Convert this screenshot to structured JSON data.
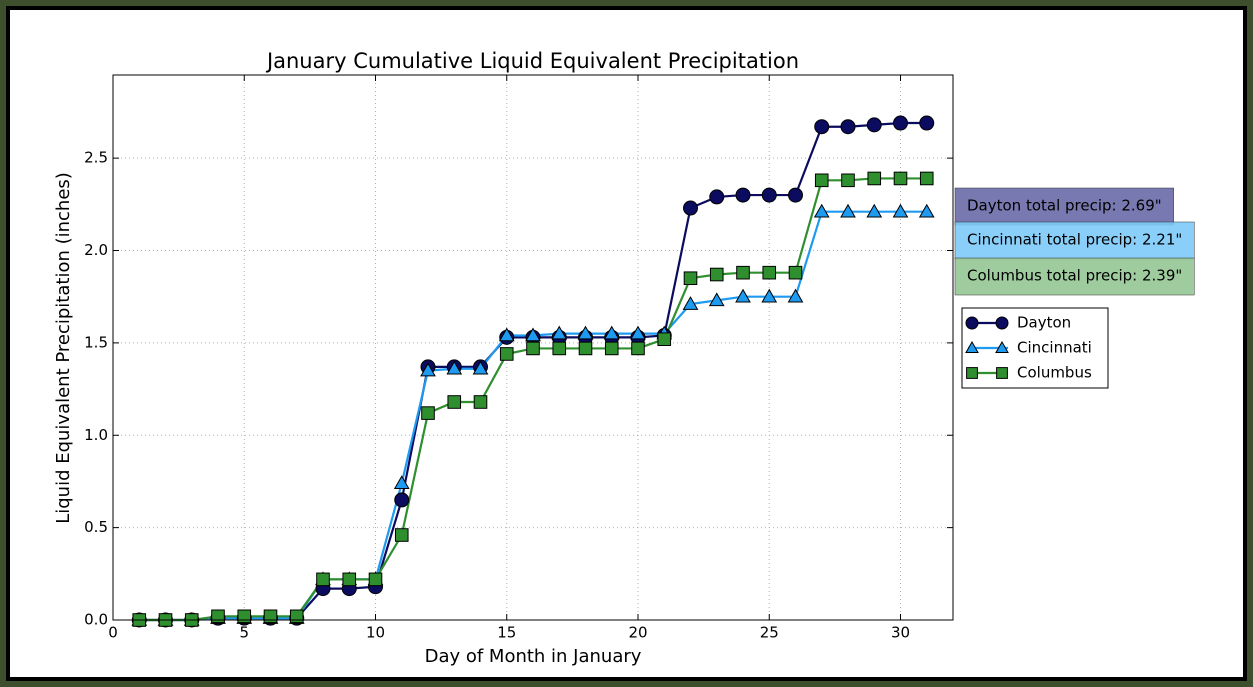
{
  "chart_data": {
    "type": "line",
    "title": "January Cumulative Liquid Equivalent Precipitation",
    "x_label": "Day of Month in January",
    "y_label": "Liquid Equivalent Precipitation (inches)",
    "x": [
      1,
      2,
      3,
      4,
      5,
      6,
      7,
      8,
      9,
      10,
      11,
      12,
      13,
      14,
      15,
      16,
      17,
      18,
      19,
      20,
      21,
      22,
      23,
      24,
      25,
      26,
      27,
      28,
      29,
      30,
      31
    ],
    "xlim": [
      0,
      32
    ],
    "xticks": [
      0,
      5,
      10,
      15,
      20,
      25,
      30
    ],
    "ylim": [
      0,
      2.95
    ],
    "yticks": [
      {
        "value": 0,
        "label": "0.0"
      },
      {
        "value": 0.5,
        "label": "0.5"
      },
      {
        "value": 1,
        "label": "1.0"
      },
      {
        "value": 1.5,
        "label": "1.5"
      },
      {
        "value": 2,
        "label": "2.0"
      },
      {
        "value": 2.5,
        "label": "2.5"
      }
    ],
    "grid": true,
    "legend": "right",
    "series": [
      {
        "name": "Dayton",
        "color": "#0b0b60",
        "marker": "circle",
        "values": [
          0,
          0,
          0,
          0.01,
          0.01,
          0.01,
          0.01,
          0.17,
          0.17,
          0.18,
          0.65,
          1.37,
          1.37,
          1.37,
          1.53,
          1.53,
          1.53,
          1.53,
          1.53,
          1.53,
          1.54,
          2.23,
          2.29,
          2.3,
          2.3,
          2.3,
          2.67,
          2.67,
          2.68,
          2.69,
          2.69
        ]
      },
      {
        "name": "Cincinnati",
        "color": "#1e9bf0",
        "marker": "triangle",
        "values": [
          0,
          0,
          0,
          0.01,
          0.01,
          0.01,
          0.01,
          0.22,
          0.22,
          0.22,
          0.74,
          1.35,
          1.36,
          1.36,
          1.54,
          1.54,
          1.55,
          1.55,
          1.55,
          1.55,
          1.55,
          1.71,
          1.73,
          1.75,
          1.75,
          1.75,
          2.21,
          2.21,
          2.21,
          2.21,
          2.21
        ]
      },
      {
        "name": "Columbus",
        "color": "#2f8f2f",
        "marker": "square",
        "values": [
          0,
          0,
          0,
          0.02,
          0.02,
          0.02,
          0.02,
          0.22,
          0.22,
          0.22,
          0.46,
          1.12,
          1.18,
          1.18,
          1.44,
          1.47,
          1.47,
          1.47,
          1.47,
          1.47,
          1.52,
          1.85,
          1.87,
          1.88,
          1.88,
          1.88,
          2.38,
          2.38,
          2.39,
          2.39,
          2.39
        ]
      }
    ],
    "annotations": [
      {
        "text": "Dayton total precip: 2.69\"",
        "color": "#6a6aa8"
      },
      {
        "text": "Cincinnati total precip: 2.21\"",
        "color": "#7ccaf8"
      },
      {
        "text": "Columbus total precip: 2.39\"",
        "color": "#94c794"
      }
    ]
  }
}
